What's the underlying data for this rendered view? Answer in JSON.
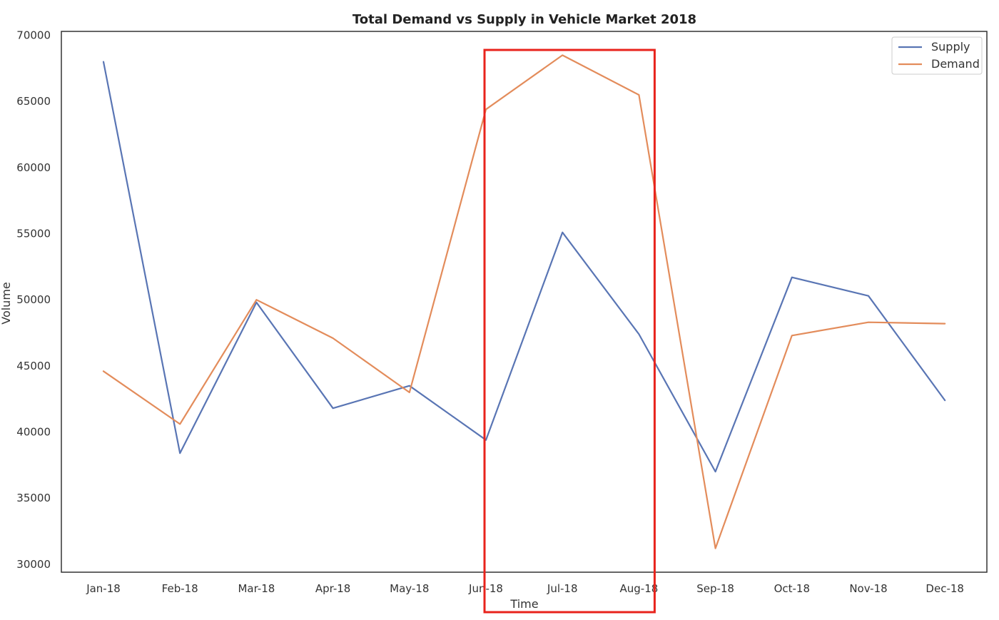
{
  "chart_data": {
    "type": "line",
    "title": "Total Demand vs Supply in Vehicle Market 2018",
    "xlabel": "Time",
    "ylabel": "Volume",
    "categories": [
      "Jan-18",
      "Feb-18",
      "Mar-18",
      "Apr-18",
      "May-18",
      "Jun-18",
      "Jul-18",
      "Aug-18",
      "Sep-18",
      "Oct-18",
      "Nov-18",
      "Dec-18"
    ],
    "ylim": [
      29400,
      70300
    ],
    "yticks": [
      "30000",
      "35000",
      "40000",
      "45000",
      "50000",
      "55000",
      "60000",
      "65000",
      "70000"
    ],
    "grid": false,
    "legend_position": "top-right",
    "series": [
      {
        "name": "Supply",
        "color": "#5975b4",
        "values": [
          68000,
          38400,
          49800,
          41800,
          43500,
          39400,
          55100,
          47400,
          37000,
          51700,
          50300,
          42400
        ]
      },
      {
        "name": "Demand",
        "color": "#e38c5b",
        "values": [
          44600,
          40600,
          50000,
          47100,
          43000,
          64400,
          68500,
          65500,
          31200,
          47300,
          48300,
          48200
        ]
      }
    ],
    "annotations": [
      {
        "type": "highlight-box",
        "color": "#e8231c",
        "from_category": "Jun-18",
        "to_category": "Aug-18"
      }
    ]
  }
}
